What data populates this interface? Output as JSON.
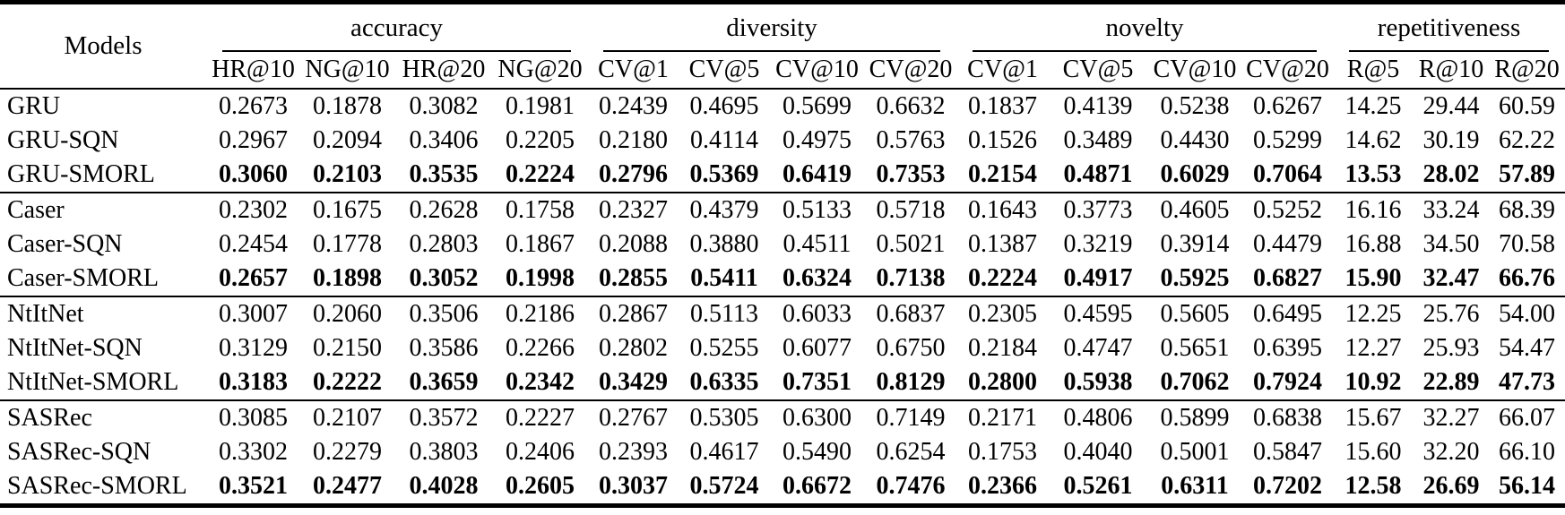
{
  "colors": {
    "background": "#ffffff",
    "text": "#000000",
    "rule": "#000000"
  },
  "table": {
    "corner_header": "Models",
    "groups": [
      {
        "label": "accuracy",
        "columns": [
          "HR@10",
          "NG@10",
          "HR@20",
          "NG@20"
        ]
      },
      {
        "label": "diversity",
        "columns": [
          "CV@1",
          "CV@5",
          "CV@10",
          "CV@20"
        ]
      },
      {
        "label": "novelty",
        "columns": [
          "CV@1",
          "CV@5",
          "CV@10",
          "CV@20"
        ]
      },
      {
        "label": "repetitiveness",
        "columns": [
          "R@5",
          "R@10",
          "R@20"
        ]
      }
    ],
    "rows": [
      {
        "model": "GRU",
        "bold": false,
        "group_end": false,
        "values": [
          "0.2673",
          "0.1878",
          "0.3082",
          "0.1981",
          "0.2439",
          "0.4695",
          "0.5699",
          "0.6632",
          "0.1837",
          "0.4139",
          "0.5238",
          "0.6267",
          "14.25",
          "29.44",
          "60.59"
        ]
      },
      {
        "model": "GRU-SQN",
        "bold": false,
        "group_end": false,
        "values": [
          "0.2967",
          "0.2094",
          "0.3406",
          "0.2205",
          "0.2180",
          "0.4114",
          "0.4975",
          "0.5763",
          "0.1526",
          "0.3489",
          "0.4430",
          "0.5299",
          "14.62",
          "30.19",
          "62.22"
        ]
      },
      {
        "model": "GRU-SMORL",
        "bold": true,
        "group_end": true,
        "values": [
          "0.3060",
          "0.2103",
          "0.3535",
          "0.2224",
          "0.2796",
          "0.5369",
          "0.6419",
          "0.7353",
          "0.2154",
          "0.4871",
          "0.6029",
          "0.7064",
          "13.53",
          "28.02",
          "57.89"
        ]
      },
      {
        "model": "Caser",
        "bold": false,
        "group_end": false,
        "values": [
          "0.2302",
          "0.1675",
          "0.2628",
          "0.1758",
          "0.2327",
          "0.4379",
          "0.5133",
          "0.5718",
          "0.1643",
          "0.3773",
          "0.4605",
          "0.5252",
          "16.16",
          "33.24",
          "68.39"
        ]
      },
      {
        "model": "Caser-SQN",
        "bold": false,
        "group_end": false,
        "values": [
          "0.2454",
          "0.1778",
          "0.2803",
          "0.1867",
          "0.2088",
          "0.3880",
          "0.4511",
          "0.5021",
          "0.1387",
          "0.3219",
          "0.3914",
          "0.4479",
          "16.88",
          "34.50",
          "70.58"
        ]
      },
      {
        "model": "Caser-SMORL",
        "bold": true,
        "group_end": true,
        "values": [
          "0.2657",
          "0.1898",
          "0.3052",
          "0.1998",
          "0.2855",
          "0.5411",
          "0.6324",
          "0.7138",
          "0.2224",
          "0.4917",
          "0.5925",
          "0.6827",
          "15.90",
          "32.47",
          "66.76"
        ]
      },
      {
        "model": "NtItNet",
        "bold": false,
        "group_end": false,
        "values": [
          "0.3007",
          "0.2060",
          "0.3506",
          "0.2186",
          "0.2867",
          "0.5113",
          "0.6033",
          "0.6837",
          "0.2305",
          "0.4595",
          "0.5605",
          "0.6495",
          "12.25",
          "25.76",
          "54.00"
        ]
      },
      {
        "model": "NtItNet-SQN",
        "bold": false,
        "group_end": false,
        "values": [
          "0.3129",
          "0.2150",
          "0.3586",
          "0.2266",
          "0.2802",
          "0.5255",
          "0.6077",
          "0.6750",
          "0.2184",
          "0.4747",
          "0.5651",
          "0.6395",
          "12.27",
          "25.93",
          "54.47"
        ]
      },
      {
        "model": "NtItNet-SMORL",
        "bold": true,
        "group_end": true,
        "values": [
          "0.3183",
          "0.2222",
          "0.3659",
          "0.2342",
          "0.3429",
          "0.6335",
          "0.7351",
          "0.8129",
          "0.2800",
          "0.5938",
          "0.7062",
          "0.7924",
          "10.92",
          "22.89",
          "47.73"
        ]
      },
      {
        "model": "SASRec",
        "bold": false,
        "group_end": false,
        "values": [
          "0.3085",
          "0.2107",
          "0.3572",
          "0.2227",
          "0.2767",
          "0.5305",
          "0.6300",
          "0.7149",
          "0.2171",
          "0.4806",
          "0.5899",
          "0.6838",
          "15.67",
          "32.27",
          "66.07"
        ]
      },
      {
        "model": "SASRec-SQN",
        "bold": false,
        "group_end": false,
        "values": [
          "0.3302",
          "0.2279",
          "0.3803",
          "0.2406",
          "0.2393",
          "0.4617",
          "0.5490",
          "0.6254",
          "0.1753",
          "0.4040",
          "0.5001",
          "0.5847",
          "15.60",
          "32.20",
          "66.10"
        ]
      },
      {
        "model": "SASRec-SMORL",
        "bold": true,
        "group_end": false,
        "values": [
          "0.3521",
          "0.2477",
          "0.4028",
          "0.2605",
          "0.3037",
          "0.5724",
          "0.6672",
          "0.7476",
          "0.2366",
          "0.5261",
          "0.6311",
          "0.7202",
          "12.58",
          "26.69",
          "56.14"
        ]
      }
    ]
  }
}
